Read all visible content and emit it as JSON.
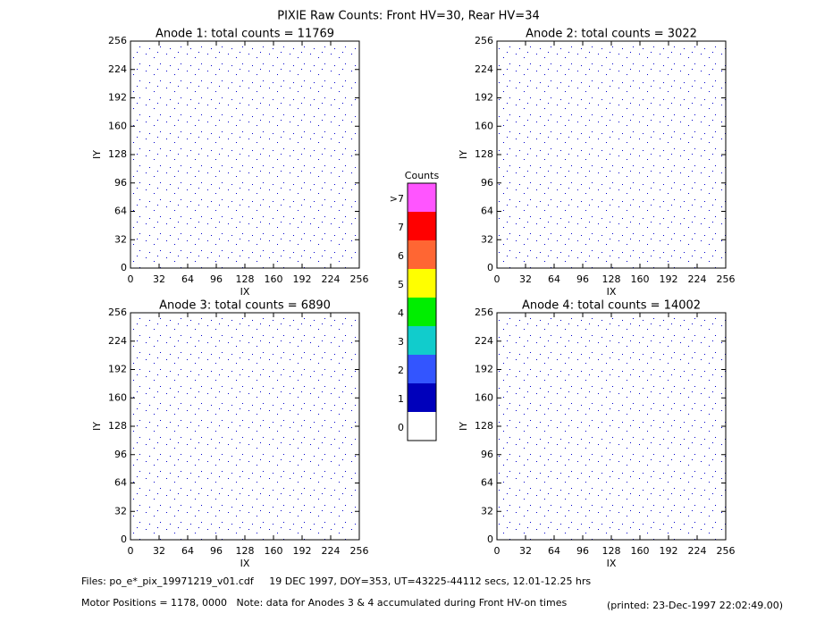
{
  "title": "PIXIE Raw Counts:  Front HV=30, Rear HV=34",
  "chart_data": [
    {
      "type": "scatter",
      "title": "Anode 1: total counts = 11769",
      "xlabel": "IX",
      "ylabel": "IY",
      "color": "#0000cc",
      "xlim": [
        0,
        256
      ],
      "ylim": [
        0,
        256
      ],
      "xticks": [
        0,
        32,
        64,
        96,
        128,
        160,
        192,
        224,
        256
      ],
      "yticks": [
        0,
        32,
        64,
        96,
        128,
        160,
        192,
        224,
        256
      ]
    },
    {
      "type": "scatter",
      "title": "Anode 2: total counts = 3022",
      "xlabel": "IX",
      "ylabel": "IY",
      "color": "#0000cc",
      "xlim": [
        0,
        256
      ],
      "ylim": [
        0,
        256
      ],
      "xticks": [
        0,
        32,
        64,
        96,
        128,
        160,
        192,
        224,
        256
      ],
      "yticks": [
        0,
        32,
        64,
        96,
        128,
        160,
        192,
        224,
        256
      ]
    },
    {
      "type": "scatter",
      "title": "Anode 3: total counts = 6890",
      "xlabel": "IX",
      "ylabel": "IY",
      "color": "#0000cc",
      "xlim": [
        0,
        256
      ],
      "ylim": [
        0,
        256
      ],
      "xticks": [
        0,
        32,
        64,
        96,
        128,
        160,
        192,
        224,
        256
      ],
      "yticks": [
        0,
        32,
        64,
        96,
        128,
        160,
        192,
        224,
        256
      ]
    },
    {
      "type": "scatter",
      "title": "Anode 4: total counts = 14002",
      "xlabel": "IX",
      "ylabel": "IY",
      "color": "#0000cc",
      "xlim": [
        0,
        256
      ],
      "ylim": [
        0,
        256
      ],
      "xticks": [
        0,
        32,
        64,
        96,
        128,
        160,
        192,
        224,
        256
      ],
      "yticks": [
        0,
        32,
        64,
        96,
        128,
        160,
        192,
        224,
        256
      ]
    }
  ],
  "colorbar": {
    "title": "Counts",
    "labels": [
      ">7",
      7,
      6,
      5,
      4,
      3,
      2,
      1,
      0
    ],
    "colors": [
      "#ff55ff",
      "#ff0000",
      "#ff6633",
      "#ffff00",
      "#00ee00",
      "#11cccc",
      "#3355ff",
      "#0000bb",
      "#ffffff"
    ]
  },
  "footer": {
    "files": "Files: po_e*_pix_19971219_v01.cdf     19 DEC 1997, DOY=353, UT=43225-44112 secs, 12.01-12.25 hrs",
    "motor": "Motor Positions = 1178, 0000   Note: data for Anodes 3 & 4 accumulated during Front HV-on times",
    "printed": "(printed: 23-Dec-1997 22:02:49.00)"
  }
}
